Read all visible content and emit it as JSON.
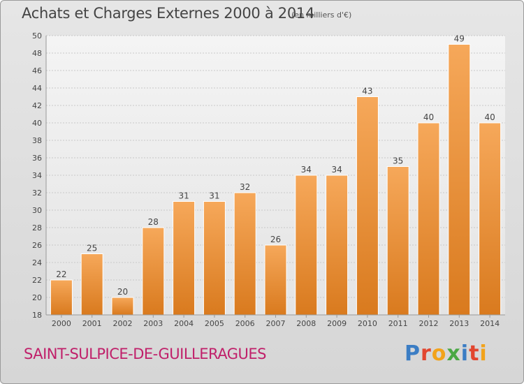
{
  "chart_data": {
    "type": "bar",
    "title": "Achats et Charges Externes 2000 à 2014",
    "unit_label": "(en milliers d'€)",
    "categories": [
      "2000",
      "2001",
      "2002",
      "2003",
      "2004",
      "2005",
      "2006",
      "2007",
      "2008",
      "2009",
      "2010",
      "2011",
      "2012",
      "2013",
      "2014"
    ],
    "values": [
      22,
      25,
      20,
      28,
      31,
      31,
      32,
      26,
      34,
      34,
      43,
      35,
      40,
      49,
      40
    ],
    "ylim": [
      18,
      50
    ],
    "yticks": [
      18,
      20,
      22,
      24,
      26,
      28,
      30,
      32,
      34,
      36,
      38,
      40,
      42,
      44,
      46,
      48,
      50
    ],
    "grid": true,
    "bar_color_top": "#f6a85a",
    "bar_color_bottom": "#d97a1e"
  },
  "footer": {
    "commune": "SAINT-SULPICE-DE-GUILLERAGUES",
    "logo_text": "Proxiti"
  },
  "colors": {
    "commune": "#c0206a",
    "logo_letters": [
      "#3b7dc4",
      "#e2462f",
      "#f2a31b",
      "#4aa844",
      "#3b7dc4",
      "#e2462f",
      "#f2a31b"
    ]
  }
}
